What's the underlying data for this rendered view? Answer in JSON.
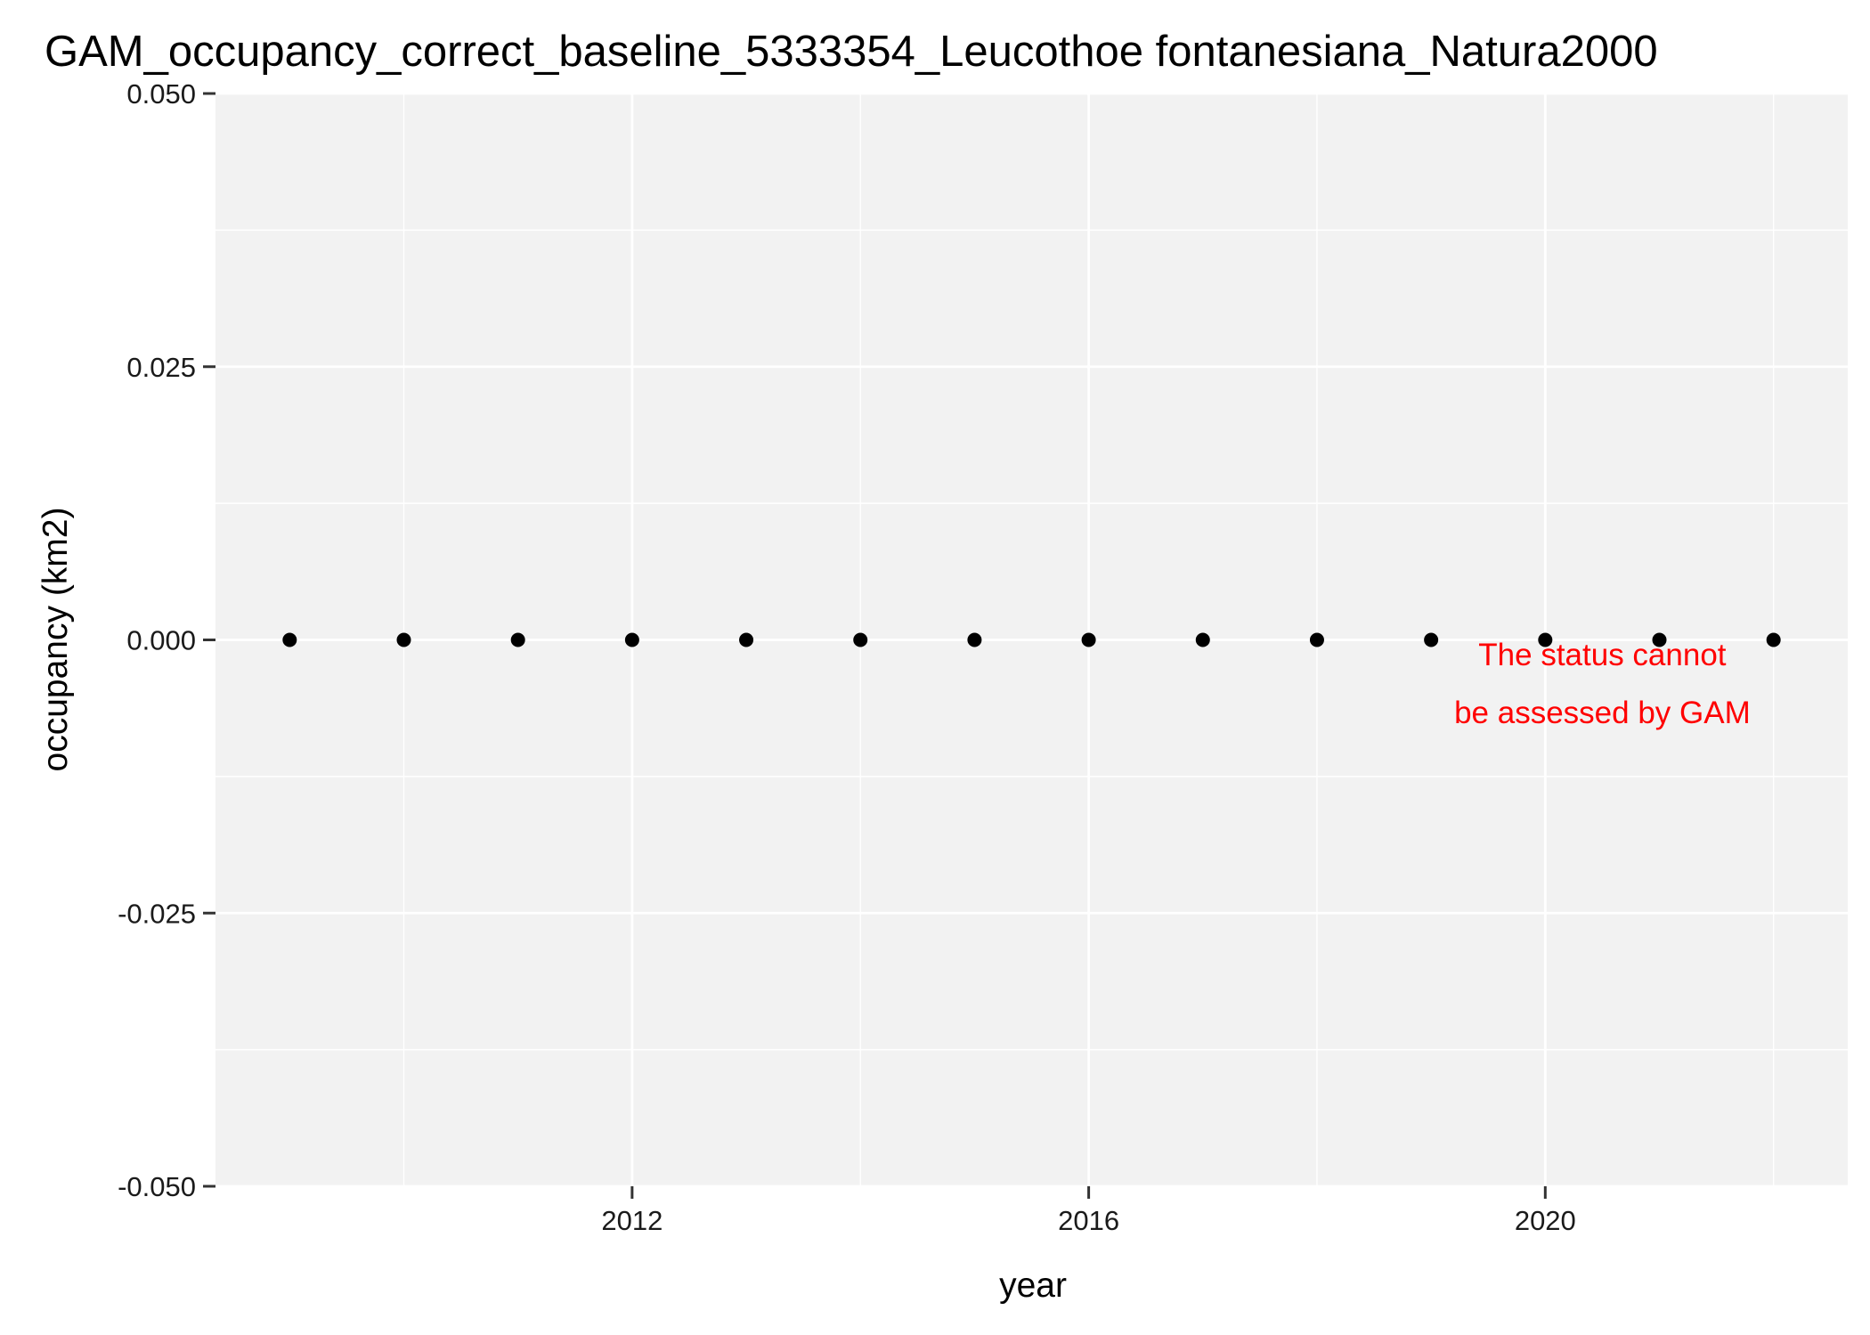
{
  "chart_data": {
    "type": "scatter",
    "title": "GAM_occupancy_correct_baseline_5333354_Leucothoe fontanesiana_Natura2000",
    "xlabel": "year",
    "ylabel": "occupancy (km2)",
    "xlim": [
      2008.35,
      2022.65
    ],
    "ylim": [
      -0.05,
      0.05
    ],
    "x_ticks": [
      2012,
      2016,
      2020
    ],
    "x_tick_labels": [
      "2012",
      "2016",
      "2020"
    ],
    "y_ticks": [
      -0.05,
      -0.025,
      0,
      0.025,
      0.05
    ],
    "y_tick_labels": [
      "-0.050",
      "-0.025",
      "0.000",
      "0.025",
      "0.050"
    ],
    "grid": true,
    "legend": "none",
    "colors": {
      "panel_background": "#f2f2f2",
      "grid": "#ffffff",
      "points": "#000000",
      "annotation": "#ff0000"
    },
    "series": [
      {
        "x": [
          2009,
          2010,
          2011,
          2012,
          2013,
          2014,
          2015,
          2016,
          2017,
          2018,
          2019,
          2020,
          2021,
          2022
        ],
        "y": [
          0,
          0,
          0,
          0,
          0,
          0,
          0,
          0,
          0,
          0,
          0,
          0,
          0,
          0
        ]
      }
    ],
    "annotation": {
      "lines": [
        "The status cannot",
        "be assessed by GAM"
      ],
      "x": 2020.5,
      "y": -0.004
    }
  }
}
